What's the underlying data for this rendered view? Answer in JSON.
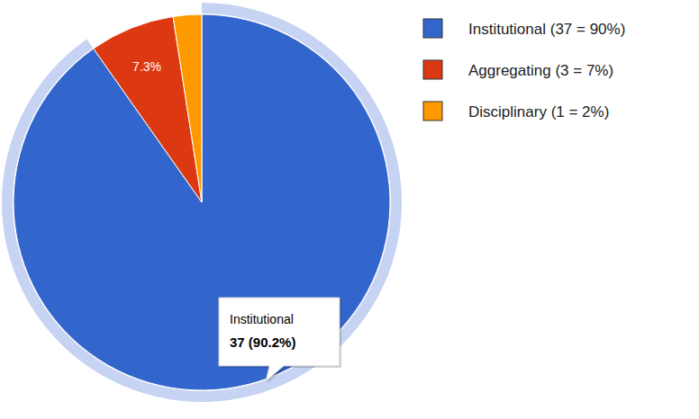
{
  "chart_data": {
    "type": "pie",
    "categories": [
      "Institutional",
      "Aggregating",
      "Disciplinary"
    ],
    "values": [
      37,
      3,
      1
    ],
    "colors": [
      "#3366cc",
      "#dc3912",
      "#ff9900"
    ],
    "legend": "top-right",
    "legend_labels": [
      "Institutional (37 = 90%)",
      "Aggregating (3 = 7%)",
      "Disciplinary (1 = 2%)"
    ],
    "annotations": [
      {
        "category": "Aggregating",
        "text": "7.3%"
      }
    ],
    "callout": {
      "category": "Institutional",
      "text": "37 (90.2%)"
    }
  }
}
